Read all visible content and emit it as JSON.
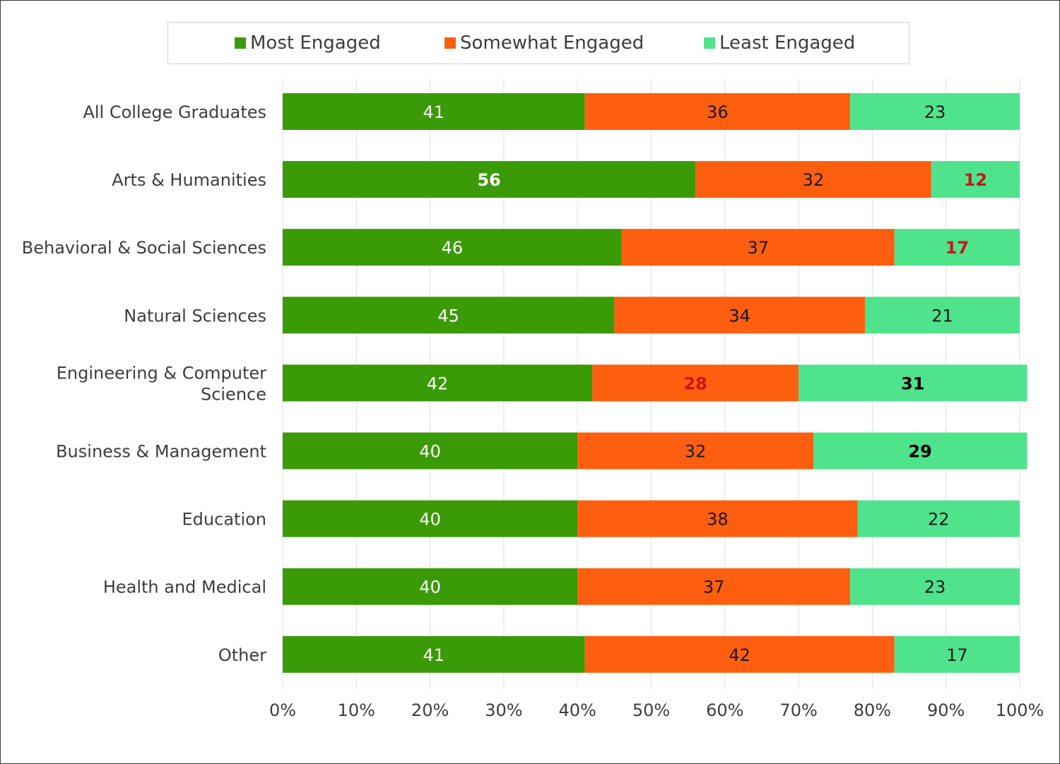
{
  "chart_data": {
    "type": "bar",
    "orientation": "horizontal",
    "stacked": true,
    "title": "",
    "xlabel": "",
    "ylabel": "",
    "xlim": [
      0,
      100
    ],
    "legend_position": "top",
    "grid": true,
    "categories": [
      "All College Graduates",
      "Arts & Humanities",
      "Behavioral & Social Sciences",
      "Natural Sciences",
      "Engineering &  Computer Science",
      "Business & Management",
      "Education",
      "Health and Medical",
      "Other"
    ],
    "category_lines": [
      [
        "All College Graduates"
      ],
      [
        "Arts & Humanities"
      ],
      [
        "Behavioral & Social Sciences"
      ],
      [
        "Natural Sciences"
      ],
      [
        "Engineering &  Computer",
        "Science"
      ],
      [
        "Business & Management"
      ],
      [
        "Education"
      ],
      [
        "Health and Medical"
      ],
      [
        "Other"
      ]
    ],
    "x_ticks": [
      "0%",
      "10%",
      "20%",
      "30%",
      "40%",
      "50%",
      "60%",
      "70%",
      "80%",
      "90%",
      "100%"
    ],
    "series": [
      {
        "name": "Most Engaged",
        "color": "#3a9a07",
        "values": [
          41,
          56,
          46,
          45,
          42,
          40,
          40,
          40,
          41
        ],
        "label_colors": [
          "#ffffff",
          "#ffffff",
          "#ffffff",
          "#ffffff",
          "#ffffff",
          "#ffffff",
          "#ffffff",
          "#ffffff",
          "#ffffff"
        ],
        "label_bold": [
          false,
          true,
          false,
          false,
          false,
          false,
          false,
          false,
          false
        ]
      },
      {
        "name": "Somewhat Engaged",
        "color": "#fd5e0f",
        "values": [
          36,
          32,
          37,
          34,
          28,
          32,
          38,
          37,
          42
        ],
        "label_colors": [
          "#1a1a1a",
          "#1a1a1a",
          "#1a1a1a",
          "#1a1a1a",
          "#c41a1a",
          "#1a1a1a",
          "#1a1a1a",
          "#1a1a1a",
          "#1a1a1a"
        ],
        "label_bold": [
          false,
          false,
          false,
          false,
          true,
          false,
          false,
          false,
          false
        ]
      },
      {
        "name": "Least Engaged",
        "color": "#4fe38c",
        "values": [
          23,
          12,
          17,
          21,
          31,
          29,
          22,
          23,
          17
        ],
        "label_colors": [
          "#1a1a1a",
          "#c41a1a",
          "#c41a1a",
          "#1a1a1a",
          "#000000",
          "#000000",
          "#1a1a1a",
          "#1a1a1a",
          "#1a1a1a"
        ],
        "label_bold": [
          false,
          true,
          true,
          false,
          true,
          true,
          false,
          false,
          false
        ]
      }
    ]
  },
  "legend": {
    "items": [
      {
        "label": "Most Engaged",
        "color": "#3a9a07"
      },
      {
        "label": "Somewhat Engaged",
        "color": "#fd5e0f"
      },
      {
        "label": "Least Engaged",
        "color": "#4fe38c"
      }
    ]
  },
  "colors": {
    "grid": "#e0e0e0",
    "text": "#3d3d3d"
  }
}
